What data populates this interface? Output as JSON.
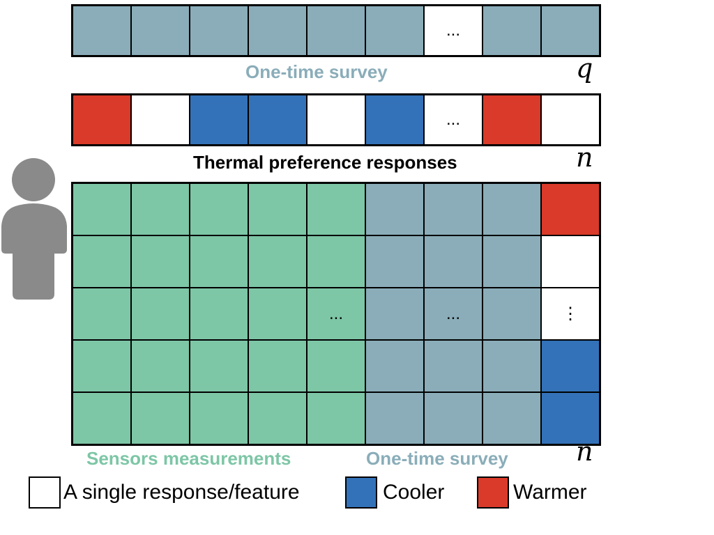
{
  "colors": {
    "survey": "#8aadb9",
    "sensor": "#7dc6a6",
    "cooler": "#3372b8",
    "warmer": "#d93a29",
    "blank": "#ffffff",
    "person": "#8a8a8a",
    "survey_text": "#8aadb9",
    "sensor_text": "#7dc6a6"
  },
  "survey_row": {
    "cells": [
      "survey",
      "survey",
      "survey",
      "survey",
      "survey",
      "survey",
      "ellipsis",
      "survey",
      "survey"
    ],
    "ellipsis": "...",
    "label": "One-time survey",
    "dim": "q"
  },
  "pref_row": {
    "cells": [
      "warmer",
      "blank",
      "cooler",
      "cooler",
      "blank",
      "cooler",
      "ellipsis",
      "warmer",
      "blank"
    ],
    "ellipsis": "...",
    "label": "Thermal preference responses",
    "dim": "n"
  },
  "matrix": {
    "sensor_cols": 5,
    "survey_cols": 3,
    "response_col": [
      "warmer",
      "blank",
      "vdots",
      "cooler",
      "cooler"
    ],
    "ellipsis_row": 2,
    "ellipsis": "...",
    "vdots": "⋮",
    "sensor_label": "Sensors measurements",
    "survey_label": "One-time survey",
    "dim": "n"
  },
  "legend": {
    "single_label": "A single response/feature",
    "cooler_label": "Cooler",
    "warmer_label": "Warmer"
  },
  "icons": {
    "person": "person-icon"
  }
}
